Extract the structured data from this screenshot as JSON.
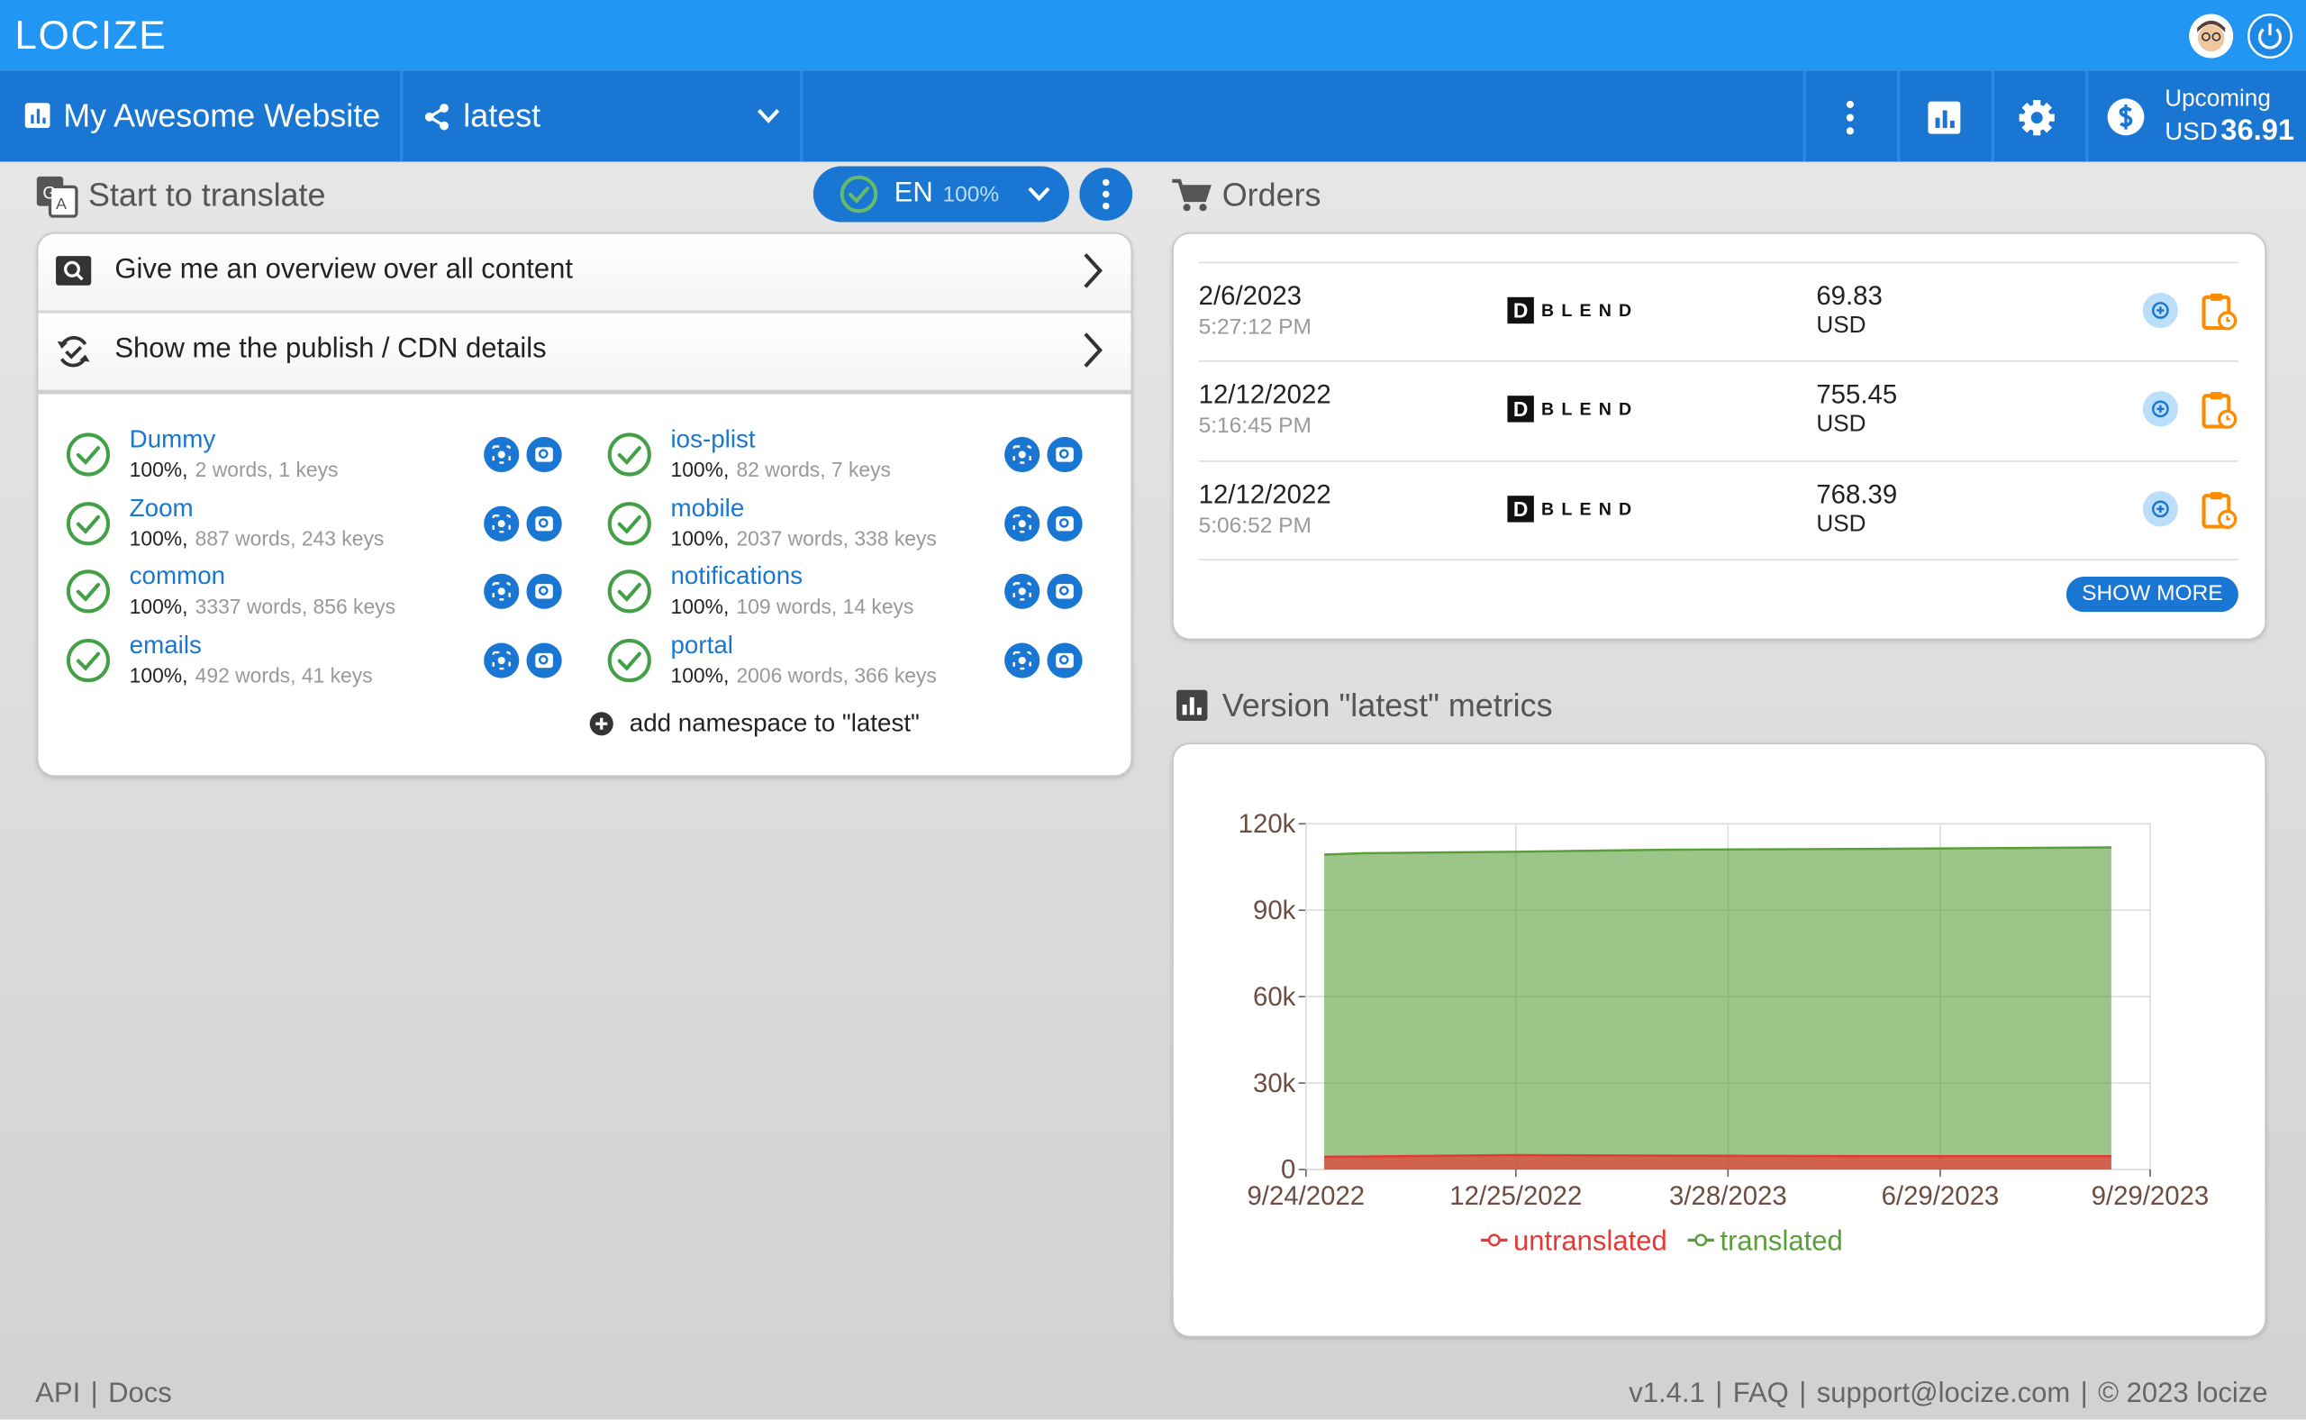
{
  "header": {
    "logo": "LOCIZE"
  },
  "nav": {
    "project": "My Awesome Website",
    "version": "latest",
    "billing_label": "Upcoming",
    "currency": "USD",
    "amount": "36.91"
  },
  "translate": {
    "title": "Start to translate",
    "language": "EN",
    "language_progress": "100%",
    "actions": [
      "Give me an overview over all content",
      "Show me the publish / CDN details"
    ],
    "namespaces": [
      {
        "name": "Dummy",
        "percent": "100%,",
        "stats": "2 words, 1 keys"
      },
      {
        "name": "Zoom",
        "percent": "100%,",
        "stats": "887 words, 243 keys"
      },
      {
        "name": "common",
        "percent": "100%,",
        "stats": "3337 words, 856 keys"
      },
      {
        "name": "emails",
        "percent": "100%,",
        "stats": "492 words, 41 keys"
      },
      {
        "name": "ios-plist",
        "percent": "100%,",
        "stats": "82 words, 7 keys"
      },
      {
        "name": "mobile",
        "percent": "100%,",
        "stats": "2037 words, 338 keys"
      },
      {
        "name": "notifications",
        "percent": "100%,",
        "stats": "109 words, 14 keys"
      },
      {
        "name": "portal",
        "percent": "100%,",
        "stats": "2006 words, 366 keys"
      }
    ],
    "add_namespace": "add namespace to \"latest\""
  },
  "orders": {
    "title": "Orders",
    "rows": [
      {
        "date": "2/6/2023",
        "time": "5:27:12 PM",
        "vendor_mark": "D",
        "vendor": "BLEND",
        "amount": "69.83",
        "currency": "USD"
      },
      {
        "date": "12/12/2022",
        "time": "5:16:45 PM",
        "vendor_mark": "D",
        "vendor": "BLEND",
        "amount": "755.45",
        "currency": "USD"
      },
      {
        "date": "12/12/2022",
        "time": "5:06:52 PM",
        "vendor_mark": "D",
        "vendor": "BLEND",
        "amount": "768.39",
        "currency": "USD"
      }
    ],
    "show_more": "SHOW MORE"
  },
  "metrics": {
    "title": "Version \"latest\" metrics",
    "chart": {
      "type": "area",
      "x": [
        "10/2/2022",
        "10/20/2022",
        "12/25/2022",
        "3/1/2023",
        "6/1/2023",
        "9/12/2023"
      ],
      "series": [
        {
          "name": "translated",
          "color": "#5a9e3a",
          "values": [
            109300,
            109800,
            110300,
            111000,
            111300,
            111800
          ]
        },
        {
          "name": "untranslated",
          "color": "#e53935",
          "values": [
            4400,
            4500,
            5000,
            4800,
            4600,
            4600
          ]
        }
      ],
      "xlim": [
        "9/24/2022",
        "9/29/2023"
      ],
      "xticks": [
        "9/24/2022",
        "12/25/2022",
        "3/28/2023",
        "6/29/2023",
        "9/29/2023"
      ],
      "ylim": [
        0,
        120000
      ],
      "yticks": [
        0,
        {
          "value": 30000,
          "label": "30k"
        },
        {
          "value": 60000,
          "label": "60k"
        },
        {
          "value": 90000,
          "label": "90k"
        },
        {
          "value": 120000,
          "label": "120k"
        }
      ],
      "grid": true
    }
  },
  "footer": {
    "left": [
      "API",
      "Docs"
    ],
    "right": [
      "v1.4.1",
      "FAQ",
      "support@locize.com",
      "© 2023 locize"
    ],
    "separator": "|"
  }
}
